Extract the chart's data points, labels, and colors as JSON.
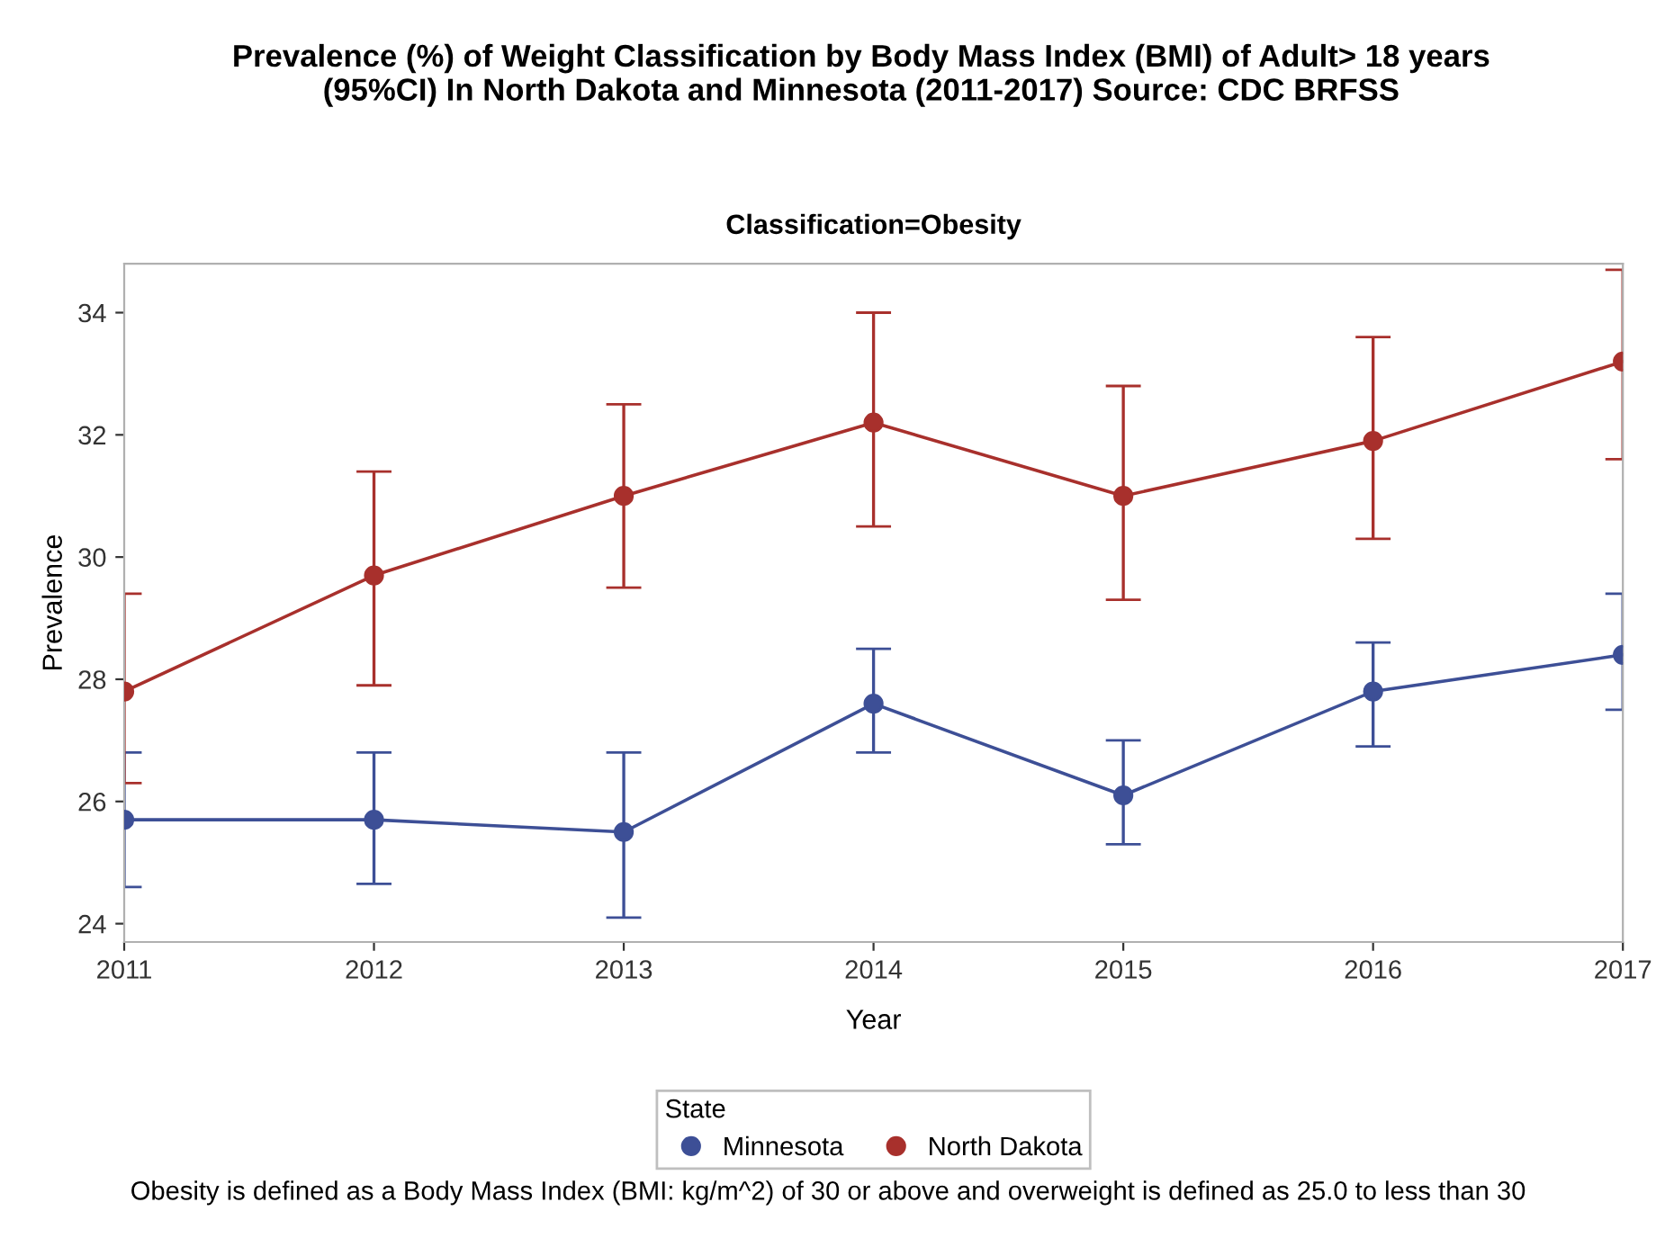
{
  "chart_data": {
    "type": "line",
    "title": "Prevalence (%) of Weight Classification by Body Mass Index (BMI) of Adult> 18 years\n(95%CI) In North Dakota and Minnesota (2011-2017) Source: CDC BRFSS",
    "subtitle": "Classification=Obesity",
    "xlabel": "Year",
    "ylabel": "Prevalence",
    "legend_title": "State",
    "x": [
      2011,
      2012,
      2013,
      2014,
      2015,
      2016,
      2017
    ],
    "series": [
      {
        "name": "Minnesota",
        "color": "#3d4f96",
        "values": [
          25.7,
          25.7,
          25.5,
          27.6,
          26.1,
          27.8,
          28.4
        ],
        "errors": [
          [
            24.6,
            26.8
          ],
          [
            24.65,
            26.8
          ],
          [
            24.1,
            26.8
          ],
          [
            26.8,
            28.5
          ],
          [
            25.3,
            27.0
          ],
          [
            26.9,
            28.6
          ],
          [
            27.5,
            29.4
          ]
        ]
      },
      {
        "name": "North Dakota",
        "color": "#a8302c",
        "values": [
          27.8,
          29.7,
          31.0,
          32.2,
          31.0,
          31.9,
          33.2
        ],
        "errors": [
          [
            26.3,
            29.4
          ],
          [
            27.9,
            31.4
          ],
          [
            29.5,
            32.5
          ],
          [
            30.5,
            34.0
          ],
          [
            29.3,
            32.8
          ],
          [
            30.3,
            33.6
          ],
          [
            31.6,
            34.7
          ]
        ]
      }
    ],
    "xlim": [
      2011,
      2017
    ],
    "xticks": [
      2011,
      2012,
      2013,
      2014,
      2015,
      2016,
      2017
    ],
    "ylim": [
      23.7,
      34.8
    ],
    "yticks": [
      24,
      26,
      28,
      30,
      32,
      34
    ],
    "marker": "circle",
    "line_style": "solid",
    "grid": false,
    "legend": "bottom",
    "annotations": [
      "Obesity is defined as a Body Mass Index (BMI: kg/m^2) of 30 or above and overweight is defined as 25.0 to less than 30"
    ]
  }
}
